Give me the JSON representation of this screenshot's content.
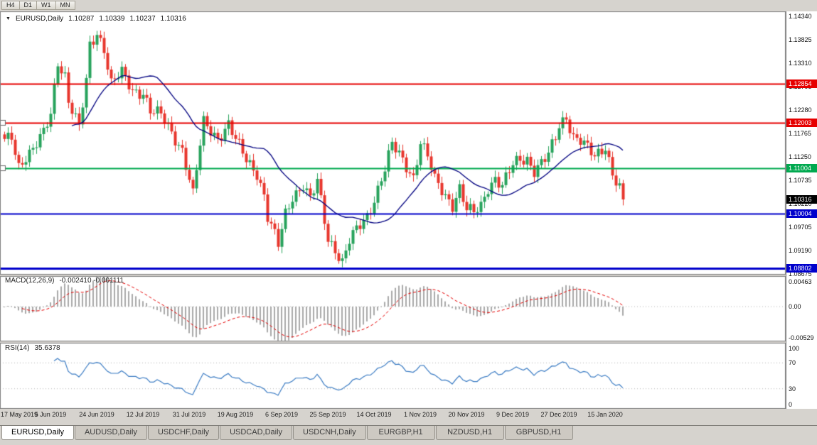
{
  "toolbar": {
    "timeframes": [
      "H4",
      "D1",
      "W1",
      "MN"
    ]
  },
  "chart_header": {
    "marker": "▼",
    "symbol": "EURUSD,Daily",
    "open": "1.10287",
    "high": "1.10339",
    "low": "1.10237",
    "close": "1.10316"
  },
  "price_axis": {
    "ticks": [
      "1.14340",
      "1.13825",
      "1.13310",
      "1.12795",
      "1.12280",
      "1.11765",
      "1.11250",
      "1.10735",
      "1.10220",
      "1.09705",
      "1.09190",
      "1.08675"
    ],
    "current_price": {
      "value": "1.10316",
      "bg": "#000000"
    }
  },
  "levels": [
    {
      "value": "1.12854",
      "color": "#e60000",
      "width": 2
    },
    {
      "value": "1.12003",
      "color": "#e60000",
      "width": 2
    },
    {
      "value": "1.11004",
      "color": "#00a94f",
      "width": 2
    },
    {
      "value": "1.10004",
      "color": "#0000cc",
      "width": 2
    },
    {
      "value": "1.08802",
      "color": "#0000cc",
      "width": 3
    }
  ],
  "indicators": {
    "macd": {
      "label": "MACD(12,26,9)",
      "values": "-0.002410 -0.001111",
      "ticks": [
        "0.00463",
        "0.00",
        "-0.00529"
      ]
    },
    "rsi": {
      "label": "RSI(14)",
      "value": "35.6378",
      "ticks": [
        "100",
        "70",
        "30",
        "0"
      ]
    }
  },
  "time_axis": {
    "labels": [
      "17 May 2019",
      "5 Jun 2019",
      "24 Jun 2019",
      "12 Jul 2019",
      "31 Jul 2019",
      "19 Aug 2019",
      "6 Sep 2019",
      "25 Sep 2019",
      "14 Oct 2019",
      "1 Nov 2019",
      "20 Nov 2019",
      "9 Dec 2019",
      "27 Dec 2019",
      "15 Jan 2020"
    ],
    "candles_per_label": 13
  },
  "tabs": [
    {
      "label": "EURUSD,Daily",
      "active": true
    },
    {
      "label": "AUDUSD,Daily",
      "active": false
    },
    {
      "label": "USDCHF,Daily",
      "active": false
    },
    {
      "label": "USDCAD,Daily",
      "active": false
    },
    {
      "label": "USDCNH,Daily",
      "active": false
    },
    {
      "label": "EURGBP,H1",
      "active": false
    },
    {
      "label": "NZDUSD,H1",
      "active": false
    },
    {
      "label": "GBPUSD,H1",
      "active": false
    }
  ],
  "chart_data": {
    "type": "candlestick",
    "title": "EURUSD,Daily",
    "x_tick_labels": [
      "17 May 2019",
      "5 Jun 2019",
      "24 Jun 2019",
      "12 Jul 2019",
      "31 Jul 2019",
      "19 Aug 2019",
      "6 Sep 2019",
      "25 Sep 2019",
      "14 Oct 2019",
      "1 Nov 2019",
      "20 Nov 2019",
      "9 Dec 2019",
      "27 Dec 2019",
      "15 Jan 2020"
    ],
    "y_range": [
      1.0868,
      1.1443
    ],
    "candle_count": 175,
    "last_ohlc": {
      "open": 1.10287,
      "high": 1.10339,
      "low": 1.10237,
      "close": 1.10316
    },
    "close_anchors": [
      [
        0,
        1.1158
      ],
      [
        2,
        1.117
      ],
      [
        4,
        1.1107
      ],
      [
        6,
        1.1128
      ],
      [
        8,
        1.114
      ],
      [
        11,
        1.1175
      ],
      [
        13,
        1.122
      ],
      [
        15,
        1.1337
      ],
      [
        17,
        1.1305
      ],
      [
        18,
        1.1248
      ],
      [
        21,
        1.1186
      ],
      [
        23,
        1.129
      ],
      [
        24,
        1.137
      ],
      [
        26,
        1.14
      ],
      [
        28,
        1.1365
      ],
      [
        30,
        1.1285
      ],
      [
        33,
        1.1308
      ],
      [
        36,
        1.1272
      ],
      [
        39,
        1.1268
      ],
      [
        41,
        1.1225
      ],
      [
        44,
        1.1215
      ],
      [
        47,
        1.118
      ],
      [
        50,
        1.1142
      ],
      [
        52,
        1.1075
      ],
      [
        53,
        1.104
      ],
      [
        55,
        1.115
      ],
      [
        56,
        1.12
      ],
      [
        58,
        1.1185
      ],
      [
        60,
        1.1168
      ],
      [
        63,
        1.1195
      ],
      [
        65,
        1.116
      ],
      [
        68,
        1.112
      ],
      [
        71,
        1.1092
      ],
      [
        73,
        1.104
      ],
      [
        74,
        1.0992
      ],
      [
        77,
        1.093
      ],
      [
        79,
        1.1
      ],
      [
        81,
        1.104
      ],
      [
        84,
        1.1065
      ],
      [
        86,
        1.103
      ],
      [
        88,
        1.1068
      ],
      [
        91,
        1.0945
      ],
      [
        93,
        1.0925
      ],
      [
        95,
        1.0895
      ],
      [
        97,
        1.094
      ],
      [
        99,
        1.0962
      ],
      [
        102,
        1.0995
      ],
      [
        104,
        1.1035
      ],
      [
        107,
        1.11
      ],
      [
        109,
        1.115
      ],
      [
        111,
        1.1128
      ],
      [
        113,
        1.1105
      ],
      [
        115,
        1.1082
      ],
      [
        117,
        1.116
      ],
      [
        119,
        1.1125
      ],
      [
        121,
        1.1072
      ],
      [
        124,
        1.104
      ],
      [
        126,
        1.1022
      ],
      [
        128,
        1.1058
      ],
      [
        130,
        1.1008
      ],
      [
        132,
        1.1
      ],
      [
        134,
        1.1016
      ],
      [
        136,
        1.106
      ],
      [
        138,
        1.108
      ],
      [
        140,
        1.1062
      ],
      [
        143,
        1.1105
      ],
      [
        145,
        1.1118
      ],
      [
        147,
        1.1122
      ],
      [
        149,
        1.1098
      ],
      [
        151,
        1.1112
      ],
      [
        153,
        1.1128
      ],
      [
        155,
        1.1165
      ],
      [
        156,
        1.1192
      ],
      [
        158,
        1.1215
      ],
      [
        160,
        1.1172
      ],
      [
        162,
        1.1162
      ],
      [
        164,
        1.1142
      ],
      [
        166,
        1.1122
      ],
      [
        168,
        1.114
      ],
      [
        169,
        1.115
      ],
      [
        171,
        1.1092
      ],
      [
        173,
        1.1058
      ],
      [
        174,
        1.1032
      ]
    ],
    "support_resistance_levels": [
      1.12854,
      1.12003,
      1.11004,
      1.10004,
      1.08802
    ],
    "moving_average": {
      "period": 20,
      "color": "#000080"
    },
    "colors": {
      "bull": "#27a35c",
      "bear": "#e8362d",
      "macd_histogram": "#a9a9a9",
      "macd_signal": "#e60000",
      "rsi_line": "#3b7cc4"
    },
    "macd": {
      "fast": 12,
      "slow": 26,
      "signal": 9,
      "last_macd": -0.00241,
      "last_signal": -0.001111,
      "axis_max": 0.00463,
      "axis_min": -0.00529
    },
    "rsi": {
      "period": 14,
      "last": 35.6378,
      "axis": [
        0,
        100
      ],
      "guide_levels": [
        30,
        70
      ]
    }
  }
}
